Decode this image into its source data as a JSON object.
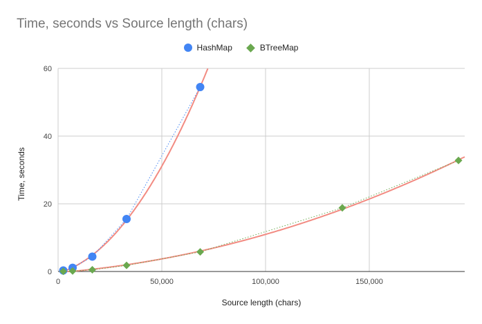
{
  "chart_data": {
    "type": "scatter",
    "title": "Time, seconds vs Source length (chars)",
    "xlabel": "Source length (chars)",
    "ylabel": "Time, seconds",
    "xlim": [
      0,
      196000
    ],
    "ylim": [
      0,
      60
    ],
    "xticks": [
      0,
      50000,
      100000,
      150000
    ],
    "xtick_labels": [
      "0",
      "50,000",
      "100,000",
      "150,000"
    ],
    "yticks": [
      0,
      20,
      40,
      60
    ],
    "ytick_labels": [
      "0",
      "20",
      "40",
      "60"
    ],
    "grid": true,
    "legend_position": "top",
    "trendline": "quadratic",
    "series": [
      {
        "name": "HashMap",
        "marker": "circle",
        "color": "#4285f4",
        "x": [
          2500,
          7000,
          16500,
          33000,
          68500
        ],
        "y": [
          0.3,
          1.1,
          4.4,
          15.5,
          54.5
        ]
      },
      {
        "name": "BTreeMap",
        "marker": "diamond",
        "color": "#6aa84f",
        "x": [
          2500,
          7000,
          16500,
          33000,
          68500,
          137000,
          193000
        ],
        "y": [
          0.05,
          0.15,
          0.5,
          1.8,
          5.8,
          18.8,
          32.8
        ]
      }
    ],
    "trend_colors": {
      "fit": "#f28b82",
      "dotted_hashmap": "#4285f4",
      "dotted_btreemap": "#6aa84f"
    }
  }
}
